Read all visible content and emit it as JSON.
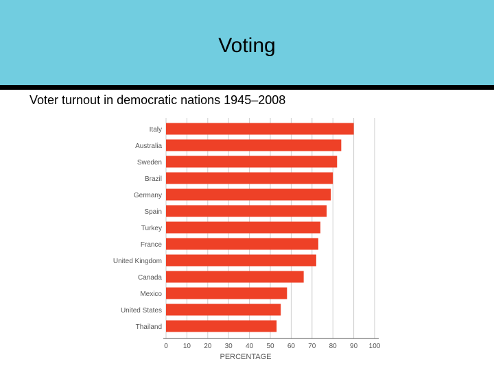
{
  "slide": {
    "title": "Voting",
    "subtitle": "Voter turnout in democratic nations 1945–2008"
  },
  "colors": {
    "title_band": "#71cde0",
    "bar": "#ee4127",
    "grid": "#cccccc",
    "axis": "#555555",
    "label": "#555555"
  },
  "chart_data": {
    "type": "bar",
    "orientation": "horizontal",
    "title": "",
    "xlabel": "PERCENTAGE",
    "ylabel": "",
    "categories": [
      "Italy",
      "Australia",
      "Sweden",
      "Brazil",
      "Germany",
      "Spain",
      "Turkey",
      "France",
      "United Kingdom",
      "Canada",
      "Mexico",
      "United States",
      "Thailand"
    ],
    "values": [
      90,
      84,
      82,
      80,
      79,
      77,
      74,
      73,
      72,
      66,
      58,
      55,
      53
    ],
    "xlim": [
      0,
      100
    ],
    "xticks": [
      0,
      10,
      20,
      30,
      40,
      50,
      60,
      70,
      80,
      90,
      100
    ],
    "grid": true
  }
}
